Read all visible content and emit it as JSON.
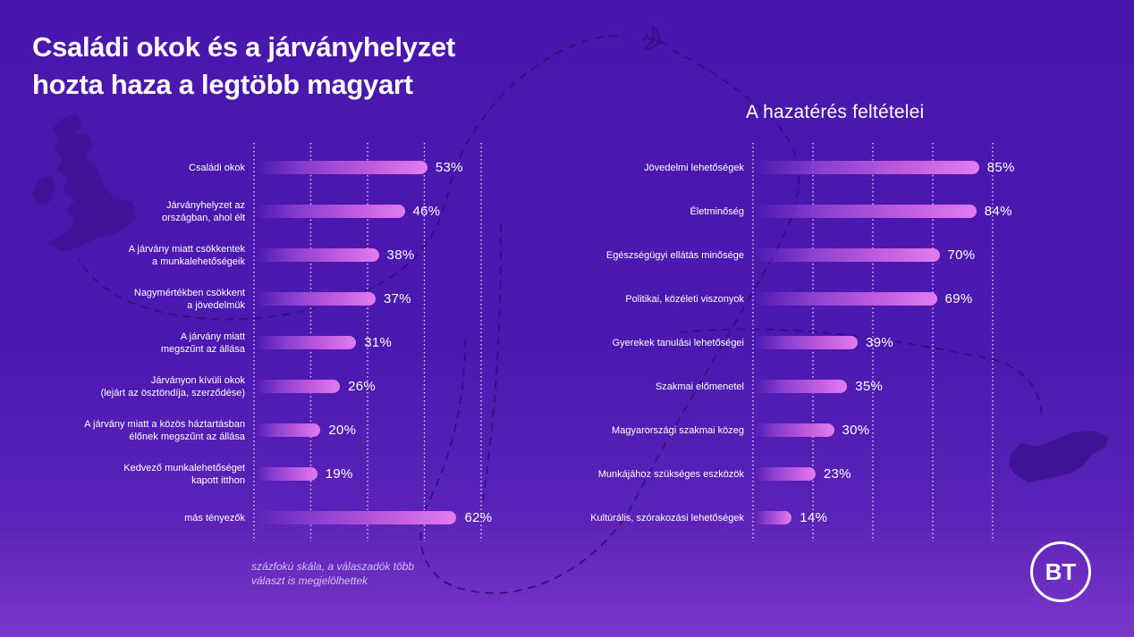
{
  "title_lines": [
    "Családi okok és a járványhelyzet",
    "hozta haza a legtöbb magyart"
  ],
  "footnote_lines": [
    "százfokú skála, a válaszadók több",
    "választ is megjelölhettek"
  ],
  "logo_text": "BT",
  "colors": {
    "background_top": "#4a17ae",
    "background_bottom": "#7b36c9",
    "bar_end": "#e27cf0",
    "bar_start": "#8a3fcf",
    "text": "#ffffff"
  },
  "chart_data": [
    {
      "type": "bar",
      "orientation": "horizontal",
      "title": "",
      "categories": [
        "Családi okok",
        "Járványhelyzet az\nországban, ahol élt",
        "A járvány miatt csökkentek\na munkalehetőségeik",
        "Nagymértékben csökkent\na jövedelmük",
        "A járvány miatt\nmegszűnt az állása",
        "Járványon kívüli okok\n(lejárt az ösztöndíja, szerződése)",
        "A járvány miatt a közös háztartásban\nélőnek megszűnt az állása",
        "Kedvező munkalehetőséget\nkapott itthon",
        "más tényezők"
      ],
      "values": [
        53,
        46,
        38,
        37,
        31,
        26,
        20,
        19,
        62
      ],
      "value_labels": [
        "53%",
        "46%",
        "38%",
        "37%",
        "31%",
        "26%",
        "20%",
        "19%",
        "62%"
      ],
      "unit": "%",
      "xlim": [
        0,
        70
      ],
      "grid": "vertical dotted",
      "xlabel": "",
      "ylabel": ""
    },
    {
      "type": "bar",
      "orientation": "horizontal",
      "title": "A hazatérés feltételei",
      "categories": [
        "Jövedelmi lehetőségek",
        "Életminőség",
        "Egészségügyi ellátás minősége",
        "Politikai, közéleti viszonyok",
        "Gyerekek tanulási lehetőségei",
        "Szakmai előmenetel",
        "Magyarországi szakmai közeg",
        "Munkájához szükséges eszközök",
        "Kultúrális, szórakozási lehetőségek"
      ],
      "values": [
        85,
        84,
        70,
        69,
        39,
        35,
        30,
        23,
        14
      ],
      "value_labels": [
        "85%",
        "84%",
        "70%",
        "69%",
        "39%",
        "35%",
        "30%",
        "23%",
        "14%"
      ],
      "unit": "%",
      "xlim": [
        0,
        91
      ],
      "grid": "vertical dotted",
      "xlabel": "",
      "ylabel": ""
    }
  ]
}
